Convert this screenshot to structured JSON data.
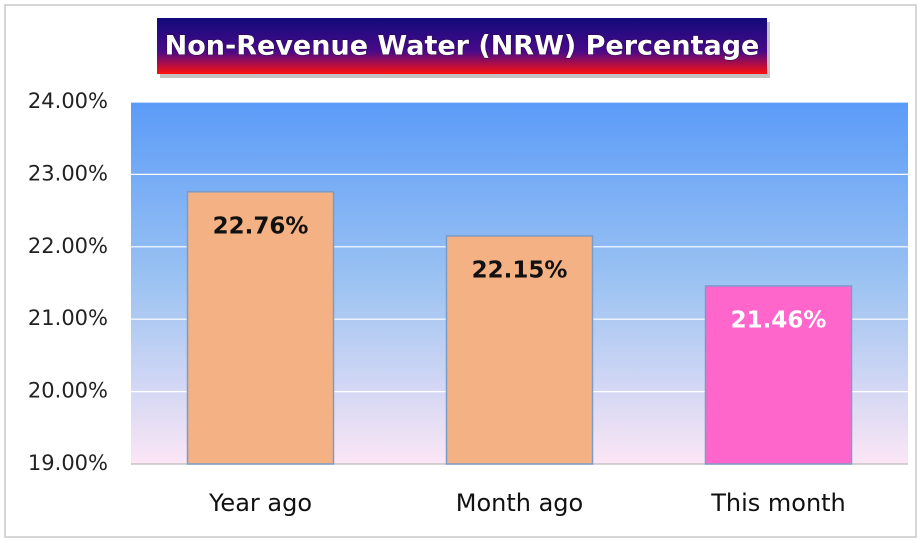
{
  "chart_data": {
    "type": "bar",
    "title": "Non-Revenue Water (NRW) Percentage",
    "categories": [
      "Year ago",
      "Month ago",
      "This month"
    ],
    "values": [
      22.76,
      22.15,
      21.46
    ],
    "value_labels": [
      "22.76%",
      "22.15%",
      "21.46%"
    ],
    "colors": [
      "#f4b183",
      "#f4b183",
      "#ff66cc"
    ],
    "value_label_colors": [
      "#111111",
      "#111111",
      "#ffffff"
    ],
    "ylim": [
      19,
      24
    ],
    "yticks": [
      {
        "value": 19,
        "label": "19.00%"
      },
      {
        "value": 20,
        "label": "20.00%"
      },
      {
        "value": 21,
        "label": "21.00%"
      },
      {
        "value": 22,
        "label": "22.00%"
      },
      {
        "value": 23,
        "label": "23.00%"
      },
      {
        "value": 24,
        "label": "24.00%"
      }
    ],
    "grid": true
  }
}
